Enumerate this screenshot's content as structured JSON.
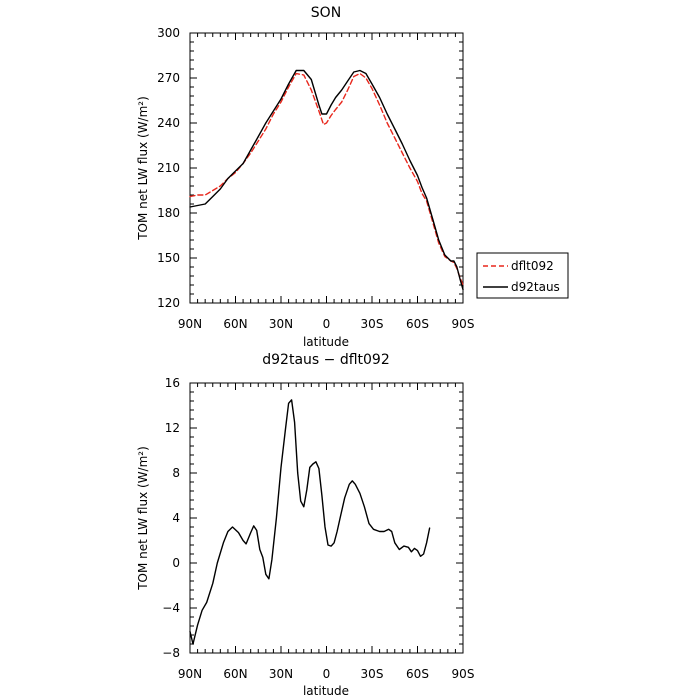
{
  "chart_data": [
    {
      "type": "line",
      "title": "SON",
      "xlabel": "latitude",
      "ylabel": "TOM net LW flux (W/m²)",
      "xlim": [
        90,
        -90
      ],
      "ylim": [
        120,
        300
      ],
      "x_ticks": [
        90,
        60,
        30,
        0,
        -30,
        -60,
        -90
      ],
      "x_tick_labels": [
        "90N",
        "60N",
        "30N",
        "0",
        "30S",
        "60S",
        "90S"
      ],
      "y_ticks": [
        120,
        150,
        180,
        210,
        240,
        270,
        300
      ],
      "y_tick_labels": [
        "120",
        "150",
        "180",
        "210",
        "240",
        "270",
        "300"
      ],
      "legend": "outside-right",
      "series": [
        {
          "name": "dflt092",
          "color": "#e8271c",
          "dash": "dashed",
          "points": [
            [
              90,
              191
            ],
            [
              85,
              192
            ],
            [
              80,
              192
            ],
            [
              75,
              195
            ],
            [
              70,
              198
            ],
            [
              65,
              203
            ],
            [
              60,
              207
            ],
            [
              55,
              213
            ],
            [
              50,
              220
            ],
            [
              45,
              228
            ],
            [
              40,
              236
            ],
            [
              35,
              246
            ],
            [
              30,
              254
            ],
            [
              25,
              264
            ],
            [
              20,
              273
            ],
            [
              15,
              272
            ],
            [
              10,
              262
            ],
            [
              5,
              248
            ],
            [
              2,
              239
            ],
            [
              0,
              240
            ],
            [
              -3,
              245
            ],
            [
              -6,
              249
            ],
            [
              -10,
              254
            ],
            [
              -14,
              262
            ],
            [
              -18,
              271
            ],
            [
              -22,
              273
            ],
            [
              -26,
              270
            ],
            [
              -30,
              263
            ],
            [
              -35,
              252
            ],
            [
              -40,
              240
            ],
            [
              -45,
              230
            ],
            [
              -50,
              220
            ],
            [
              -55,
              210
            ],
            [
              -60,
              201
            ],
            [
              -63,
              193
            ],
            [
              -66,
              188
            ],
            [
              -70,
              174
            ],
            [
              -74,
              160
            ],
            [
              -78,
              151
            ],
            [
              -82,
              148
            ],
            [
              -84,
              147
            ],
            [
              -86,
              143
            ],
            [
              -88,
              137
            ],
            [
              -90,
              132
            ]
          ]
        },
        {
          "name": "d92taus",
          "color": "#000000",
          "dash": "solid",
          "points": [
            [
              90,
              184
            ],
            [
              85,
              185
            ],
            [
              80,
              186
            ],
            [
              75,
              191
            ],
            [
              70,
              196
            ],
            [
              65,
              203
            ],
            [
              60,
              208
            ],
            [
              55,
              213
            ],
            [
              50,
              222
            ],
            [
              45,
              231
            ],
            [
              40,
              240
            ],
            [
              35,
              248
            ],
            [
              30,
              256
            ],
            [
              25,
              266
            ],
            [
              20,
              275
            ],
            [
              15,
              275
            ],
            [
              10,
              269
            ],
            [
              5,
              252
            ],
            [
              3,
              246
            ],
            [
              0,
              246
            ],
            [
              -3,
              252
            ],
            [
              -6,
              257
            ],
            [
              -10,
              262
            ],
            [
              -14,
              268
            ],
            [
              -18,
              274
            ],
            [
              -22,
              275
            ],
            [
              -26,
              273
            ],
            [
              -30,
              266
            ],
            [
              -35,
              257
            ],
            [
              -40,
              246
            ],
            [
              -45,
              236
            ],
            [
              -50,
              226
            ],
            [
              -55,
              215
            ],
            [
              -60,
              205
            ],
            [
              -63,
              197
            ],
            [
              -66,
              190
            ],
            [
              -70,
              176
            ],
            [
              -74,
              162
            ],
            [
              -78,
              152
            ],
            [
              -82,
              148
            ],
            [
              -84,
              148
            ],
            [
              -86,
              144
            ],
            [
              -88,
              136
            ],
            [
              -90,
              129
            ]
          ]
        }
      ]
    },
    {
      "type": "line",
      "title": "d92taus − dflt092",
      "xlabel": "latitude",
      "ylabel": "TOM net LW flux (W/m²)",
      "xlim": [
        90,
        -90
      ],
      "ylim": [
        -8,
        16
      ],
      "x_ticks": [
        90,
        60,
        30,
        0,
        -30,
        -60,
        -90
      ],
      "x_tick_labels": [
        "90N",
        "60N",
        "30N",
        "0",
        "30S",
        "60S",
        "90S"
      ],
      "y_ticks": [
        -8,
        -4,
        0,
        4,
        8,
        12,
        16
      ],
      "y_tick_labels": [
        "−8",
        "−4",
        "0",
        "4",
        "8",
        "12",
        "16"
      ],
      "series": [
        {
          "color": "#000000",
          "dash": "solid",
          "points": [
            [
              90,
              -6.1
            ],
            [
              88,
              -7.2
            ],
            [
              85,
              -5.5
            ],
            [
              82,
              -4.2
            ],
            [
              79,
              -3.5
            ],
            [
              75,
              -1.8
            ],
            [
              72,
              0.0
            ],
            [
              68,
              1.8
            ],
            [
              65,
              2.8
            ],
            [
              62,
              3.2
            ],
            [
              58,
              2.7
            ],
            [
              55,
              2.0
            ],
            [
              53,
              1.7
            ],
            [
              50,
              2.7
            ],
            [
              48,
              3.3
            ],
            [
              46,
              2.9
            ],
            [
              44,
              1.2
            ],
            [
              42,
              0.5
            ],
            [
              40,
              -1.0
            ],
            [
              38,
              -1.4
            ],
            [
              36,
              0.3
            ],
            [
              33,
              4.0
            ],
            [
              30,
              8.5
            ],
            [
              27,
              12.0
            ],
            [
              25,
              14.2
            ],
            [
              23,
              14.5
            ],
            [
              21,
              12.5
            ],
            [
              19,
              8.0
            ],
            [
              17,
              5.5
            ],
            [
              15,
              5.0
            ],
            [
              13,
              6.5
            ],
            [
              11,
              8.5
            ],
            [
              9,
              8.8
            ],
            [
              7,
              9.0
            ],
            [
              5,
              8.4
            ],
            [
              3,
              6.0
            ],
            [
              1,
              3.2
            ],
            [
              -1,
              1.6
            ],
            [
              -3,
              1.5
            ],
            [
              -5,
              1.8
            ],
            [
              -7,
              2.8
            ],
            [
              -9,
              4.0
            ],
            [
              -12,
              5.8
            ],
            [
              -15,
              7.0
            ],
            [
              -17,
              7.3
            ],
            [
              -19,
              7.0
            ],
            [
              -22,
              6.2
            ],
            [
              -25,
              5.0
            ],
            [
              -28,
              3.5
            ],
            [
              -31,
              3.0
            ],
            [
              -35,
              2.8
            ],
            [
              -38,
              2.8
            ],
            [
              -41,
              3.0
            ],
            [
              -43,
              2.8
            ],
            [
              -45,
              1.8
            ],
            [
              -48,
              1.2
            ],
            [
              -51,
              1.5
            ],
            [
              -54,
              1.4
            ],
            [
              -56,
              1.0
            ],
            [
              -58,
              1.3
            ],
            [
              -60,
              1.1
            ],
            [
              -62,
              0.6
            ],
            [
              -64,
              0.8
            ],
            [
              -66,
              1.8
            ],
            [
              -68,
              3.1
            ]
          ]
        }
      ]
    }
  ]
}
